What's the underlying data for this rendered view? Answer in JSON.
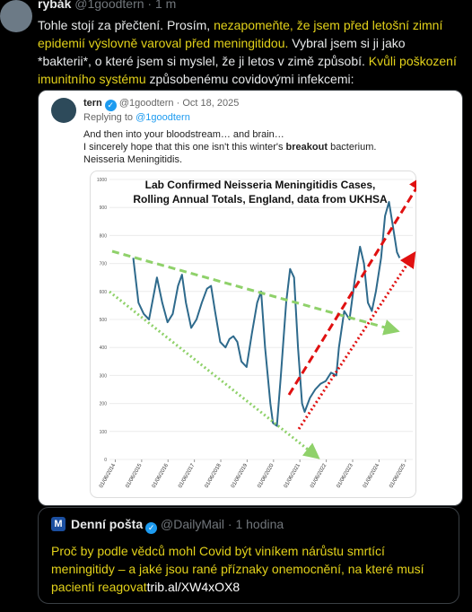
{
  "post": {
    "author": "rybák",
    "meta": "@1goodtern · 1 m",
    "text": [
      {
        "text": "Tohle stojí za přečtení. Prosím, ",
        "highlight": false
      },
      {
        "text": "nezapomeňte, že jsem před letošní zimní epidemií výslovně varoval před meningitidou.",
        "highlight": true
      },
      {
        "text": " Vybral jsem si ji jako *bakterii*, o které jsem si myslel, že ji letos v zimě způsobí. ",
        "highlight": false
      },
      {
        "text": "Kvůli poškození imunitního systému",
        "highlight": true
      },
      {
        "text": " způsobenému covidovými infekcemi:",
        "highlight": false
      }
    ]
  },
  "quoted": {
    "author": "tern",
    "meta": "@1goodtern · Oct 18, 2025",
    "replying": "Replying to",
    "reply_handle": "@1goodtern",
    "line1": "And then into your bloodstream… and brain…",
    "line2": [
      {
        "text": "I sincerely hope that this one isn't this winter's ",
        "bold": false
      },
      {
        "text": "breakout",
        "bold": true
      },
      {
        "text": " bacterium.",
        "bold": false
      }
    ],
    "line3": "Neisseria Meningitidis."
  },
  "chart_data": {
    "type": "line",
    "title": [
      "Lab Confirmed Neisseria Meningitidis Cases,",
      "Rolling Annual Totals, England, data from UKHSA"
    ],
    "color": "#2e6a8c",
    "x": [
      2015.1,
      2015.3,
      2015.5,
      2015.7,
      2015.9,
      2016.0,
      2016.2,
      2016.4,
      2016.6,
      2016.8,
      2016.95,
      2017.1,
      2017.3,
      2017.5,
      2017.7,
      2017.9,
      2018.05,
      2018.2,
      2018.4,
      2018.6,
      2018.75,
      2018.9,
      2019.05,
      2019.2,
      2019.4,
      2019.6,
      2019.8,
      2019.95,
      2020.1,
      2020.3,
      2020.4,
      2020.55,
      2020.7,
      2020.9,
      2021.05,
      2021.2,
      2021.35,
      2021.5,
      2021.6,
      2021.8,
      2022.0,
      2022.2,
      2022.4,
      2022.6,
      2022.8,
      2022.9,
      2023.1,
      2023.3,
      2023.5,
      2023.7,
      2023.85,
      2024.0,
      2024.15,
      2024.3,
      2024.5,
      2024.65,
      2024.8,
      2024.95,
      2025.1,
      2025.2
    ],
    "values": [
      720,
      560,
      520,
      500,
      600,
      650,
      560,
      490,
      520,
      620,
      660,
      560,
      470,
      500,
      560,
      610,
      620,
      530,
      420,
      400,
      430,
      440,
      420,
      350,
      330,
      450,
      560,
      600,
      400,
      200,
      130,
      120,
      300,
      560,
      680,
      650,
      400,
      200,
      170,
      220,
      250,
      270,
      280,
      310,
      300,
      400,
      530,
      500,
      640,
      760,
      700,
      560,
      530,
      600,
      720,
      870,
      920,
      830,
      740,
      720
    ],
    "xlim": [
      2014.2,
      2025.7
    ],
    "xticks": [
      {
        "value": 2014.42,
        "label": "01/06/2014"
      },
      {
        "value": 2015.42,
        "label": "01/06/2015"
      },
      {
        "value": 2016.42,
        "label": "01/06/2016"
      },
      {
        "value": 2017.42,
        "label": "01/06/2017"
      },
      {
        "value": 2018.42,
        "label": "01/06/2018"
      },
      {
        "value": 2019.42,
        "label": "01/06/2019"
      },
      {
        "value": 2020.42,
        "label": "01/06/2020"
      },
      {
        "value": 2021.42,
        "label": "01/06/2021"
      },
      {
        "value": 2022.42,
        "label": "01/06/2022"
      },
      {
        "value": 2023.42,
        "label": "01/06/2023"
      },
      {
        "value": 2024.42,
        "label": "01/06/2024"
      },
      {
        "value": 2025.42,
        "label": "01/06/2025"
      }
    ],
    "ylim": [
      0,
      1000
    ],
    "yticks": [
      0,
      100,
      200,
      300,
      400,
      500,
      600,
      700,
      800,
      900,
      1000
    ],
    "grid": true
  },
  "card": {
    "source": "Denní pošta",
    "meta": "@DailyMail · 1 hodina",
    "text": "Proč by podle vědců mohl Covid být viníkem nárůstu smrtící meningitidy – a jaké jsou rané příznaky onemocnění, na které musí pacienti reagovat",
    "link": "trib.al/XW4xOX8"
  }
}
